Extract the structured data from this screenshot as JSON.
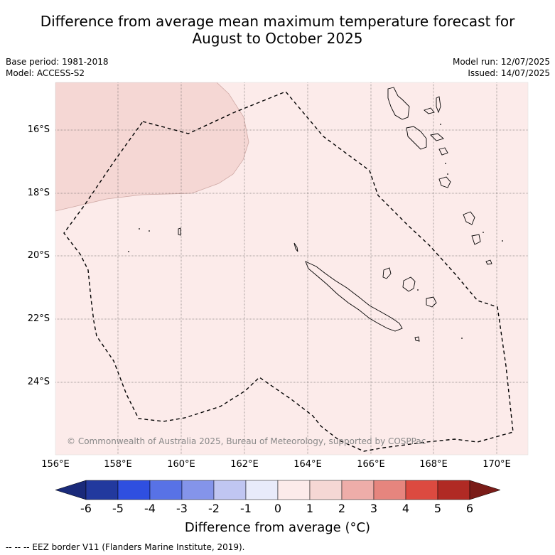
{
  "title_line1": "Difference from average mean maximum temperature forecast for",
  "title_line2": "August to October 2025",
  "base_period": "Base period: 1981-2018",
  "model": "Model: ACCESS-S2",
  "model_run": "Model run: 12/07/2025",
  "issued": "Issued: 14/07/2025",
  "copyright": "© Commonwealth of Australia 2025, Bureau of Meteorology, supported by COSPPac",
  "lat_labels": [
    "16°S",
    "18°S",
    "20°S",
    "22°S",
    "24°S"
  ],
  "lon_labels": [
    "156°E",
    "158°E",
    "160°E",
    "162°E",
    "164°E",
    "166°E",
    "168°E",
    "170°E"
  ],
  "colorbar": {
    "ticks": [
      "-6",
      "-5",
      "-4",
      "-3",
      "-2",
      "-1",
      "0",
      "1",
      "2",
      "3",
      "4",
      "5",
      "6"
    ],
    "colors": [
      "#22399e",
      "#2f4fe0",
      "#5872e6",
      "#8494ea",
      "#c0c6f2",
      "#e8ebfa",
      "#fcebea",
      "#f5d7d4",
      "#eeada9",
      "#e6857e",
      "#dc4a40",
      "#b02a24"
    ],
    "under_color": "#1a2a7a",
    "over_color": "#7a1c18",
    "label": "Difference from average (°C)"
  },
  "map": {
    "background_color": "#fcebea",
    "warm_region_color": "#f5d7d4"
  },
  "footer": "--  --  -- EEZ border V11 (Flanders Marine Institute, 2019)."
}
